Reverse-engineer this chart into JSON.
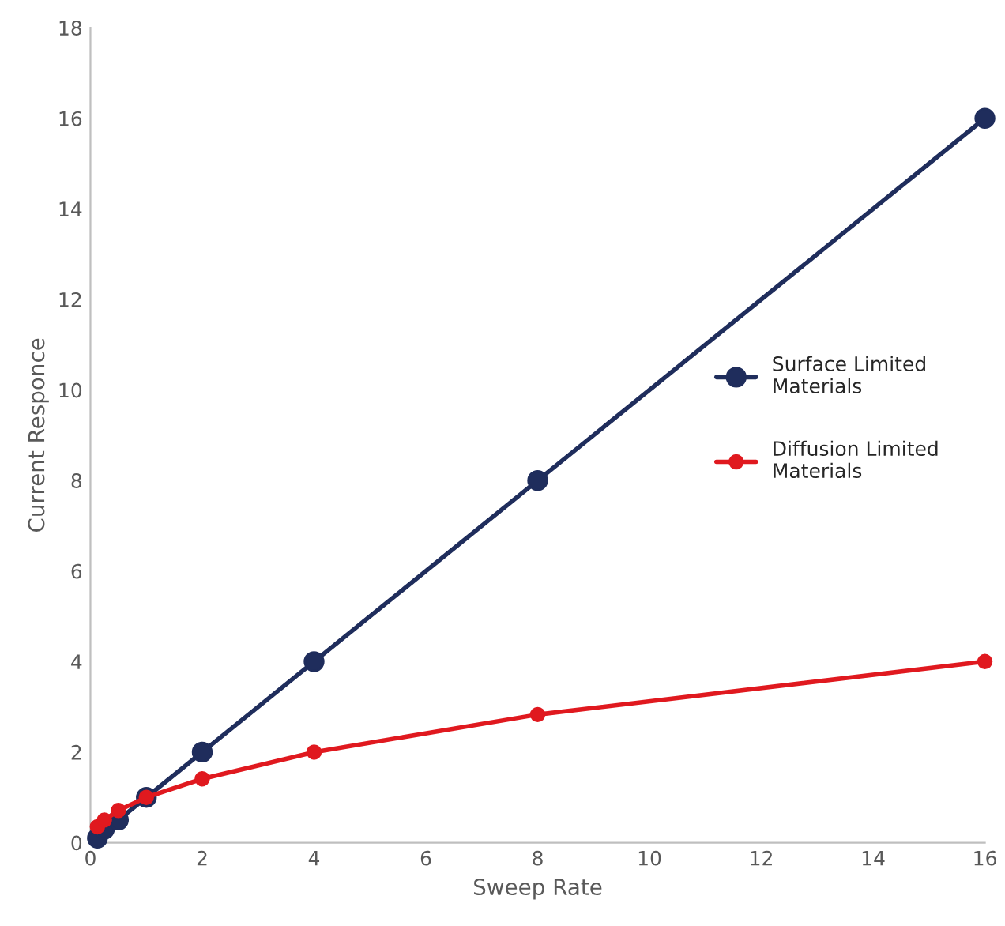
{
  "chart_data": {
    "type": "line",
    "xlabel": "Sweep Rate",
    "ylabel": "Current Responce",
    "xlim": [
      0,
      16
    ],
    "xticks": [
      0,
      2,
      4,
      6,
      8,
      10,
      12,
      14,
      16
    ],
    "ylim": [
      0,
      18
    ],
    "yticks": [
      0,
      2,
      4,
      6,
      8,
      10,
      12,
      14,
      16,
      18
    ],
    "grid": false,
    "legend": "right",
    "marker": "circle",
    "line_style": "solid",
    "series": [
      {
        "name": "Surface Limited\nMaterials",
        "color": "#1f2d5c",
        "x": [
          0.125,
          0.25,
          0.5,
          1,
          2,
          4,
          8,
          16
        ],
        "values": [
          0.1,
          0.3,
          0.5,
          1,
          2,
          4,
          8,
          16
        ]
      },
      {
        "name": "Diffusion Limited\nMaterials",
        "color": "#e0191f",
        "x": [
          0.125,
          0.25,
          0.5,
          1,
          2,
          4,
          8,
          16
        ],
        "values": [
          0.35,
          0.5,
          0.71,
          1,
          1.41,
          2,
          2.83,
          4
        ]
      }
    ]
  }
}
